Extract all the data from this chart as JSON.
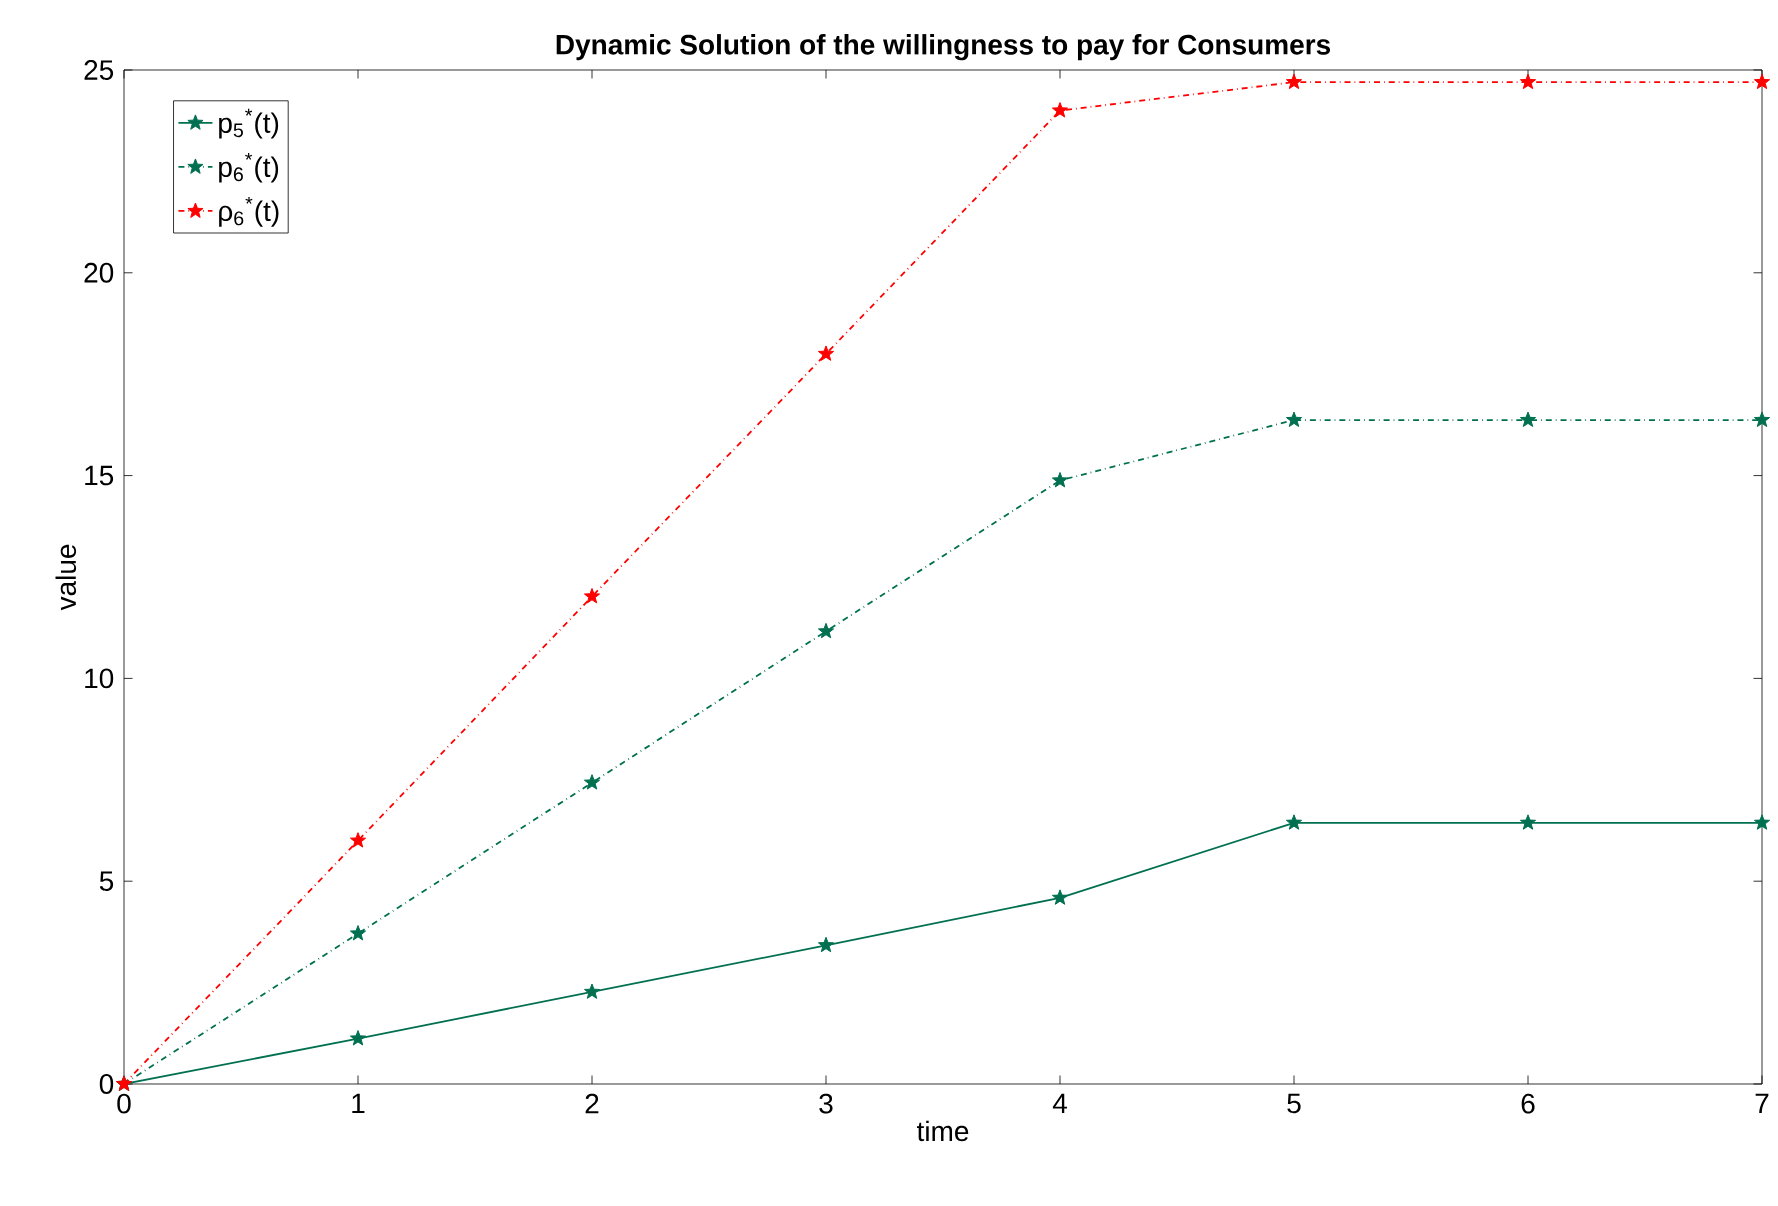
{
  "chart_data": {
    "type": "line",
    "title": "Dynamic Solution of the willingness to pay for Consumers",
    "xlabel": "time",
    "ylabel": "value",
    "x": [
      0,
      1,
      2,
      3,
      4,
      5,
      6,
      7
    ],
    "series": [
      {
        "name": "p$_{5}$$^{*}$(t)",
        "color": "#007050",
        "line_style": "solid",
        "values": [
          0,
          1.12,
          2.27,
          3.42,
          4.59,
          6.44,
          6.44,
          6.44
        ]
      },
      {
        "name": "p$_{6}$$^{*}$(t)",
        "color": "#007050",
        "line_style": "dashed",
        "values": [
          0,
          3.71,
          7.43,
          11.16,
          14.88,
          16.37,
          16.37,
          16.37
        ]
      },
      {
        "name": "ρ$_{6}$$^{*}$(t)",
        "color": "#ff0000",
        "line_style": "dashed",
        "values": [
          0,
          6.0,
          12.02,
          18.0,
          24.0,
          24.7,
          24.7,
          24.7
        ]
      }
    ],
    "xlim": [
      0,
      7
    ],
    "xticks": [
      0,
      1,
      2,
      3,
      4,
      5,
      6,
      7
    ],
    "ylim": [
      0,
      25
    ],
    "yticks": [
      0,
      5,
      10,
      15,
      20,
      25
    ],
    "grid": false,
    "legend": "top left",
    "marker": "star"
  }
}
